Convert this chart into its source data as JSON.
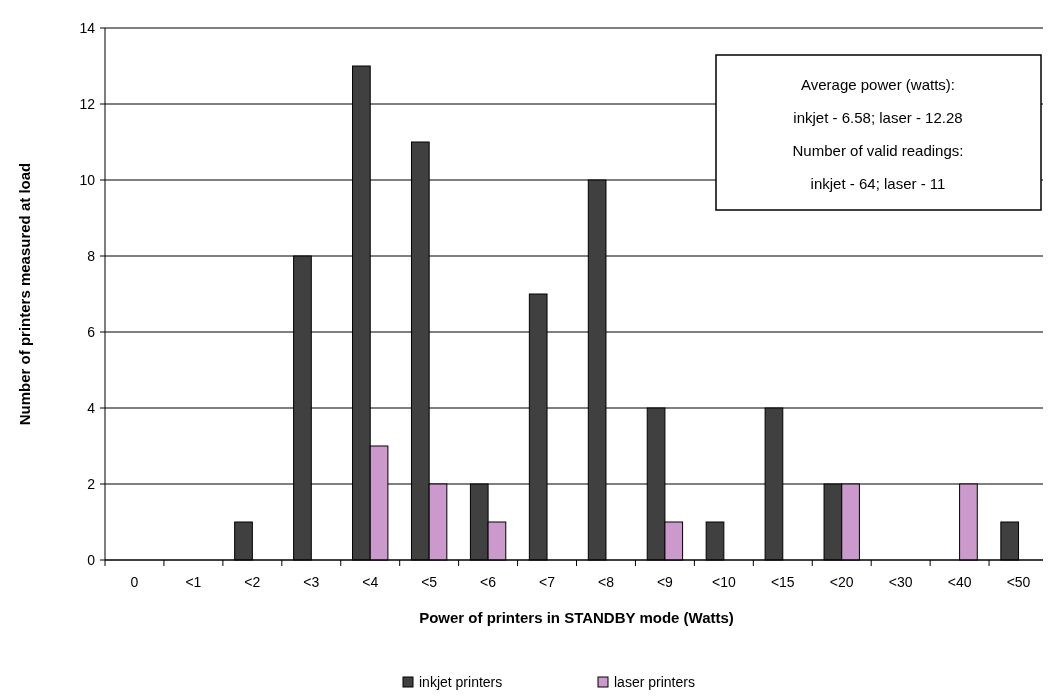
{
  "chart_data": {
    "type": "bar",
    "xlabel": "Power of printers in STANDBY mode (Watts)",
    "ylabel": "Number of printers measured at load",
    "categories": [
      "0",
      "<1",
      "<2",
      "<3",
      "<4",
      "<5",
      "<6",
      "<7",
      "<8",
      "<9",
      "<10",
      "<15",
      "<20",
      "<30",
      "<40",
      "<50"
    ],
    "series": [
      {
        "name": "inkjet printers",
        "color": "#404040",
        "values": [
          0,
          0,
          1,
          8,
          13,
          11,
          2,
          7,
          10,
          4,
          1,
          4,
          2,
          0,
          0,
          1
        ]
      },
      {
        "name": "laser printers",
        "color": "#cc99cc",
        "values": [
          0,
          0,
          0,
          0,
          3,
          2,
          1,
          0,
          0,
          1,
          0,
          0,
          2,
          0,
          2,
          0
        ]
      }
    ],
    "ylim": [
      0,
      14
    ],
    "yticks": [
      0,
      2,
      4,
      6,
      8,
      10,
      12,
      14
    ],
    "grid": "y",
    "legend": "bottom",
    "annotations": [
      "Average power (watts):",
      "inkjet - 6.58; laser - 12.28",
      "Number of valid readings:",
      "inkjet - 64; laser - 11"
    ]
  }
}
